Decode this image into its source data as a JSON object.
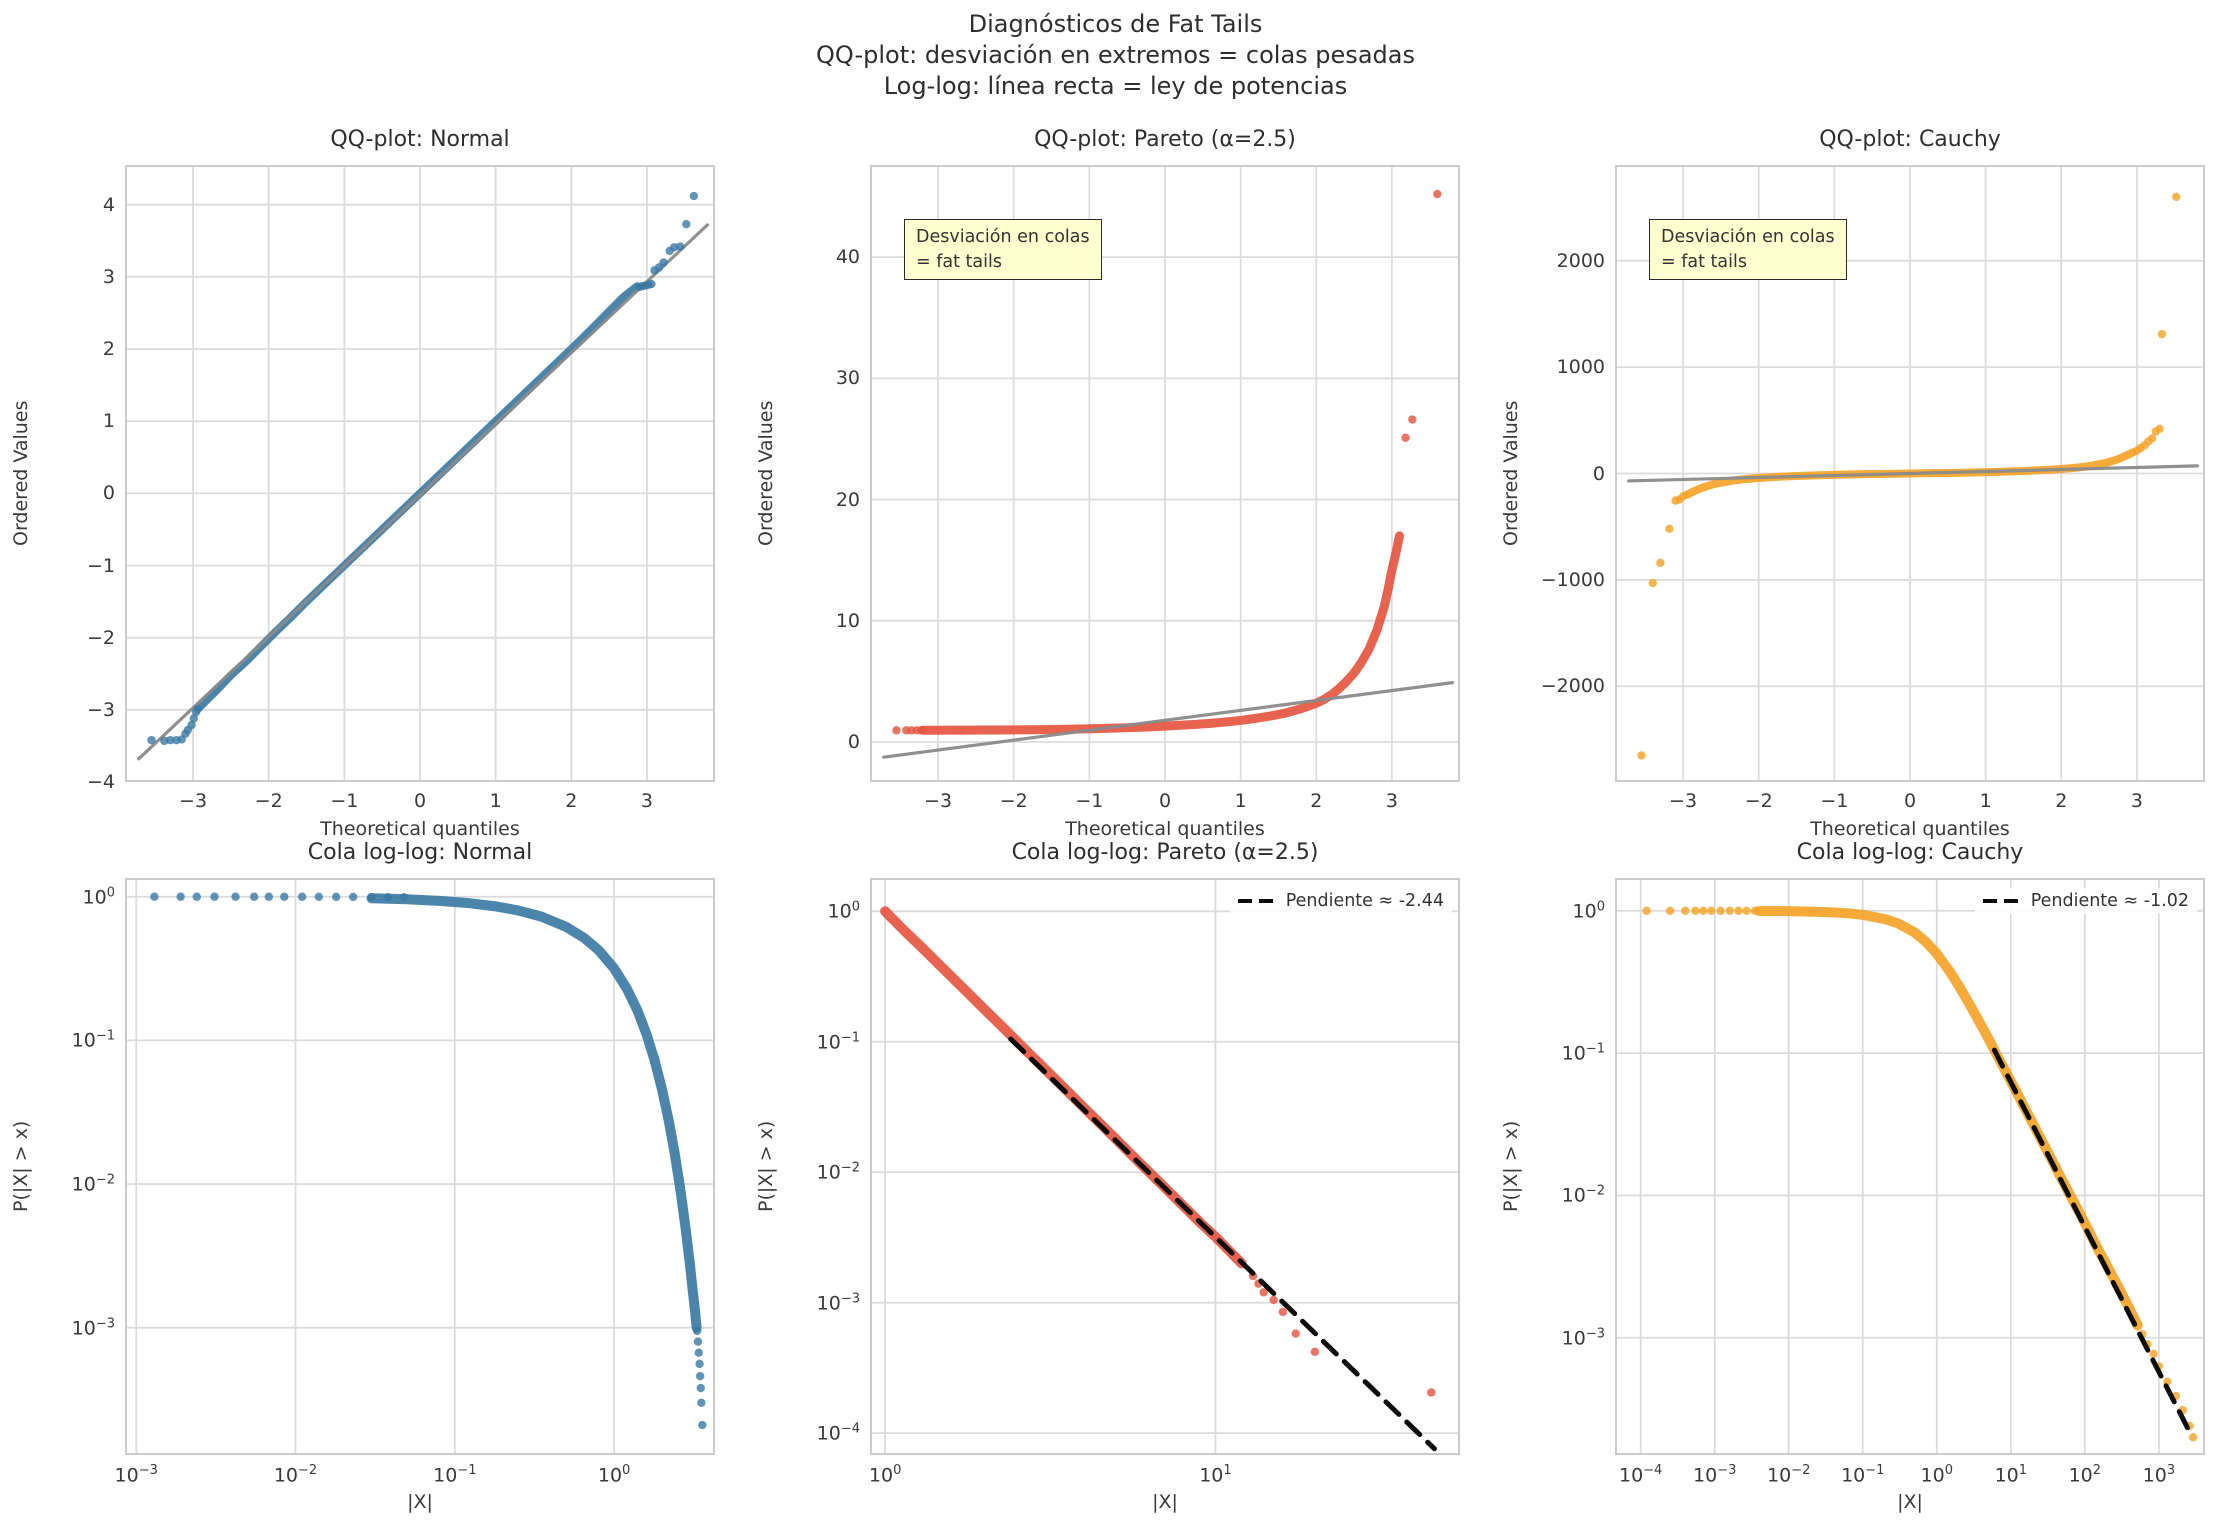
{
  "figure": {
    "title_lines": [
      "Diagnósticos de Fat Tails",
      "QQ-plot: desviación en extremos = colas pesadas",
      "Log-log: línea recta = ley de potencias"
    ],
    "background": "#ffffff",
    "grid_color": "#dbdbdb",
    "spine_color": "#cbcbcb",
    "text_color": "#3a3a3a",
    "ref_line_color": "#8a8a8a",
    "fit_line_color": "#0d0d0d"
  },
  "chart_data": [
    {
      "id": "qq-normal",
      "type": "scatter",
      "title": "QQ-plot: Normal",
      "xlabel": "Theoretical quantiles",
      "ylabel": "Ordered Values",
      "xscale": "linear",
      "yscale": "linear",
      "xlim": [
        -3.9,
        3.9
      ],
      "ylim": [
        -4.0,
        4.55
      ],
      "xticks": [
        -3,
        -2,
        -1,
        0,
        1,
        2,
        3
      ],
      "yticks": [
        -4,
        -3,
        -2,
        -1,
        0,
        1,
        2,
        3,
        4
      ],
      "color": "#3878A3",
      "band_width": 8,
      "band": [
        [
          -2.92,
          -2.97
        ],
        [
          -2.7,
          -2.74
        ],
        [
          -2.5,
          -2.52
        ],
        [
          -2.3,
          -2.33
        ],
        [
          -2.1,
          -2.12
        ],
        [
          -1.9,
          -1.91
        ],
        [
          -1.7,
          -1.71
        ],
        [
          -1.5,
          -1.5
        ],
        [
          -1.3,
          -1.3
        ],
        [
          -1.1,
          -1.1
        ],
        [
          -0.9,
          -0.9
        ],
        [
          -0.7,
          -0.7
        ],
        [
          -0.5,
          -0.5
        ],
        [
          -0.3,
          -0.3
        ],
        [
          -0.1,
          -0.1
        ],
        [
          0.1,
          0.1
        ],
        [
          0.3,
          0.3
        ],
        [
          0.5,
          0.5
        ],
        [
          0.7,
          0.7
        ],
        [
          0.9,
          0.9
        ],
        [
          1.1,
          1.1
        ],
        [
          1.3,
          1.3
        ],
        [
          1.5,
          1.5
        ],
        [
          1.7,
          1.7
        ],
        [
          1.9,
          1.9
        ],
        [
          2.1,
          2.1
        ],
        [
          2.3,
          2.31
        ],
        [
          2.5,
          2.52
        ],
        [
          2.7,
          2.73
        ],
        [
          2.87,
          2.87
        ]
      ],
      "dots": [
        [
          -3.55,
          -3.42
        ],
        [
          -3.38,
          -3.43
        ],
        [
          -3.3,
          -3.42
        ],
        [
          -3.22,
          -3.42
        ],
        [
          -3.15,
          -3.41
        ],
        [
          -3.1,
          -3.33
        ],
        [
          -3.07,
          -3.28
        ],
        [
          -3.02,
          -3.21
        ],
        [
          -2.99,
          -3.12
        ],
        [
          -2.96,
          -3.03
        ],
        [
          -2.94,
          -2.99
        ],
        [
          2.9,
          2.86
        ],
        [
          2.94,
          2.87
        ],
        [
          2.98,
          2.88
        ],
        [
          3.02,
          2.89
        ],
        [
          3.06,
          2.9
        ],
        [
          3.1,
          3.09
        ],
        [
          3.16,
          3.13
        ],
        [
          3.22,
          3.2
        ],
        [
          3.3,
          3.36
        ],
        [
          3.36,
          3.41
        ],
        [
          3.44,
          3.42
        ],
        [
          3.52,
          3.73
        ],
        [
          3.62,
          4.12
        ]
      ],
      "ref_line": {
        "p1": [
          -3.72,
          -3.68
        ],
        "p2": [
          3.8,
          3.72
        ]
      }
    },
    {
      "id": "qq-pareto",
      "type": "scatter",
      "title": "QQ-plot: Pareto (α=2.5)",
      "xlabel": "Theoretical quantiles",
      "ylabel": "Ordered Values",
      "xscale": "linear",
      "yscale": "linear",
      "xlim": [
        -3.9,
        3.9
      ],
      "ylim": [
        -3.3,
        47.6
      ],
      "xticks": [
        -3,
        -2,
        -1,
        0,
        1,
        2,
        3
      ],
      "yticks": [
        0,
        10,
        20,
        30,
        40
      ],
      "color": "#E4513C",
      "band_width": 9,
      "band": [
        [
          -3.2,
          0.97
        ],
        [
          -3.0,
          0.97
        ],
        [
          -2.8,
          0.98
        ],
        [
          -2.6,
          0.98
        ],
        [
          -2.4,
          0.99
        ],
        [
          -2.2,
          0.99
        ],
        [
          -2.0,
          1.0
        ],
        [
          -1.8,
          1.01
        ],
        [
          -1.6,
          1.02
        ],
        [
          -1.4,
          1.04
        ],
        [
          -1.2,
          1.06
        ],
        [
          -1.0,
          1.09
        ],
        [
          -0.8,
          1.12
        ],
        [
          -0.6,
          1.16
        ],
        [
          -0.4,
          1.2
        ],
        [
          -0.2,
          1.25
        ],
        [
          0,
          1.31
        ],
        [
          0.2,
          1.38
        ],
        [
          0.4,
          1.45
        ],
        [
          0.6,
          1.54
        ],
        [
          0.8,
          1.65
        ],
        [
          1.0,
          1.78
        ],
        [
          1.2,
          1.95
        ],
        [
          1.4,
          2.15
        ],
        [
          1.6,
          2.4
        ],
        [
          1.8,
          2.75
        ],
        [
          2.0,
          3.2
        ],
        [
          2.1,
          3.5
        ],
        [
          2.2,
          3.9
        ],
        [
          2.3,
          4.4
        ],
        [
          2.4,
          5.0
        ],
        [
          2.5,
          5.7
        ],
        [
          2.6,
          6.6
        ],
        [
          2.7,
          7.7
        ],
        [
          2.8,
          9.2
        ],
        [
          2.85,
          10.2
        ],
        [
          2.9,
          11.2
        ],
        [
          2.95,
          12.6
        ],
        [
          3.0,
          14.2
        ],
        [
          3.05,
          15.5
        ],
        [
          3.1,
          17.0
        ]
      ],
      "dots": [
        [
          -3.55,
          0.96
        ],
        [
          -3.42,
          0.96
        ],
        [
          -3.35,
          0.96
        ],
        [
          -3.28,
          0.96
        ],
        [
          -3.22,
          0.97
        ],
        [
          3.18,
          25.1
        ],
        [
          3.27,
          26.6
        ],
        [
          3.6,
          45.2
        ]
      ],
      "ref_line": {
        "p1": [
          -3.72,
          -1.25
        ],
        "p2": [
          3.8,
          4.9
        ]
      },
      "annotation": {
        "lines": [
          "Desviación en colas",
          "= fat tails"
        ],
        "bg": "#ffffd0",
        "position": "upper left"
      }
    },
    {
      "id": "qq-cauchy",
      "type": "scatter",
      "title": "QQ-plot: Cauchy",
      "xlabel": "Theoretical quantiles",
      "ylabel": "Ordered Values",
      "xscale": "linear",
      "yscale": "linear",
      "xlim": [
        -3.9,
        3.9
      ],
      "ylim": [
        -2900,
        2900
      ],
      "xticks": [
        -3,
        -2,
        -1,
        0,
        1,
        2,
        3
      ],
      "yticks": [
        -2000,
        -1000,
        0,
        1000,
        2000
      ],
      "color": "#F4A123",
      "band_width": 8,
      "band": [
        [
          -2.95,
          -200
        ],
        [
          -2.85,
          -165
        ],
        [
          -2.75,
          -135
        ],
        [
          -2.6,
          -100
        ],
        [
          -2.45,
          -80
        ],
        [
          -2.3,
          -62
        ],
        [
          -2.1,
          -48
        ],
        [
          -1.9,
          -38
        ],
        [
          -1.7,
          -30
        ],
        [
          -1.5,
          -24
        ],
        [
          -1.2,
          -17
        ],
        [
          -0.9,
          -11
        ],
        [
          -0.6,
          -6
        ],
        [
          -0.3,
          -3
        ],
        [
          0,
          0
        ],
        [
          0.3,
          3
        ],
        [
          0.6,
          6
        ],
        [
          0.9,
          11
        ],
        [
          1.2,
          17
        ],
        [
          1.5,
          24
        ],
        [
          1.7,
          30
        ],
        [
          1.9,
          38
        ],
        [
          2.1,
          48
        ],
        [
          2.3,
          62
        ],
        [
          2.45,
          80
        ],
        [
          2.6,
          100
        ],
        [
          2.75,
          135
        ],
        [
          2.85,
          165
        ],
        [
          2.95,
          200
        ]
      ],
      "dots": [
        [
          -3.55,
          -2650
        ],
        [
          -3.4,
          -1030
        ],
        [
          -3.3,
          -840
        ],
        [
          -3.18,
          -520
        ],
        [
          -3.1,
          -255
        ],
        [
          -3.05,
          -245
        ],
        [
          -3.0,
          -215
        ],
        [
          3.0,
          215
        ],
        [
          3.05,
          240
        ],
        [
          3.1,
          265
        ],
        [
          3.15,
          300
        ],
        [
          3.2,
          330
        ],
        [
          3.25,
          395
        ],
        [
          3.3,
          420
        ],
        [
          3.33,
          1310
        ],
        [
          3.52,
          2600
        ]
      ],
      "ref_line": {
        "p1": [
          -3.72,
          -70
        ],
        "p2": [
          3.8,
          72
        ]
      },
      "annotation": {
        "lines": [
          "Desviación en colas",
          "= fat tails"
        ],
        "bg": "#ffffd0",
        "position": "upper left"
      }
    },
    {
      "id": "loglog-normal",
      "type": "scatter",
      "title": "Cola log-log: Normal",
      "xlabel": "|X|",
      "ylabel": "P(|X| > x)",
      "xscale": "log",
      "yscale": "log",
      "xlim": [
        0.00085,
        4.3
      ],
      "ylim": [
        0.00013,
        1.35
      ],
      "xtick_exps": [
        -3,
        -2,
        -1,
        0
      ],
      "ytick_exps": [
        0,
        -1,
        -2,
        -3
      ],
      "color": "#3878A3",
      "band_width": 10,
      "band": [
        [
          0.03,
          0.976
        ],
        [
          0.05,
          0.96
        ],
        [
          0.08,
          0.936
        ],
        [
          0.12,
          0.905
        ],
        [
          0.18,
          0.857
        ],
        [
          0.25,
          0.803
        ],
        [
          0.35,
          0.727
        ],
        [
          0.5,
          0.617
        ],
        [
          0.65,
          0.516
        ],
        [
          0.8,
          0.424
        ],
        [
          1.0,
          0.317
        ],
        [
          1.2,
          0.23
        ],
        [
          1.4,
          0.162
        ],
        [
          1.6,
          0.11
        ],
        [
          1.8,
          0.072
        ],
        [
          2.0,
          0.0455
        ],
        [
          2.2,
          0.0278
        ],
        [
          2.4,
          0.0164
        ],
        [
          2.6,
          0.0093
        ],
        [
          2.8,
          0.0051
        ],
        [
          3.0,
          0.0027
        ],
        [
          3.1,
          0.0019
        ],
        [
          3.2,
          0.0014
        ],
        [
          3.3,
          0.001
        ]
      ],
      "dots": [
        [
          0.0013,
          1
        ],
        [
          0.0019,
          1
        ],
        [
          0.0024,
          1
        ],
        [
          0.0031,
          1
        ],
        [
          0.0042,
          1
        ],
        [
          0.0055,
          1
        ],
        [
          0.0068,
          1
        ],
        [
          0.0085,
          1
        ],
        [
          0.011,
          1
        ],
        [
          0.014,
          0.999
        ],
        [
          0.018,
          0.998
        ],
        [
          0.023,
          0.997
        ],
        [
          0.03,
          0.995
        ],
        [
          0.038,
          0.993
        ],
        [
          0.048,
          0.99
        ],
        [
          3.32,
          0.00095
        ],
        [
          3.36,
          0.0008
        ],
        [
          3.4,
          0.00067
        ],
        [
          3.44,
          0.00056
        ],
        [
          3.47,
          0.00046
        ],
        [
          3.5,
          0.00038
        ],
        [
          3.53,
          0.0003
        ],
        [
          3.58,
          0.00021
        ]
      ]
    },
    {
      "id": "loglog-pareto",
      "type": "scatter",
      "title": "Cola log-log: Pareto (α=2.5)",
      "xlabel": "|X|",
      "ylabel": "P(|X| > x)",
      "xscale": "log",
      "yscale": "log",
      "xlim": [
        0.9,
        55
      ],
      "ylim": [
        6.8e-05,
        1.8
      ],
      "xtick_exps": [
        0,
        1
      ],
      "ytick_exps": [
        0,
        -1,
        -2,
        -3,
        -4
      ],
      "color": "#E4513C",
      "band_width": 10,
      "band": [
        [
          1.0,
          1.0
        ],
        [
          1.15,
          0.7
        ],
        [
          1.3,
          0.52
        ],
        [
          1.5,
          0.363
        ],
        [
          1.7,
          0.266
        ],
        [
          2.0,
          0.177
        ],
        [
          2.3,
          0.125
        ],
        [
          2.6,
          0.0917
        ],
        [
          3.0,
          0.0642
        ],
        [
          3.5,
          0.0437
        ],
        [
          4.0,
          0.0312
        ],
        [
          4.5,
          0.0233
        ],
        [
          5.0,
          0.0179
        ],
        [
          6.0,
          0.0113
        ],
        [
          7.0,
          0.0077
        ],
        [
          8.0,
          0.0055
        ],
        [
          9.0,
          0.0041
        ],
        [
          10,
          0.0032
        ],
        [
          11,
          0.0025
        ],
        [
          12,
          0.002
        ]
      ],
      "dots": [
        [
          13,
          0.0016
        ],
        [
          13.5,
          0.0014
        ],
        [
          14,
          0.0012
        ],
        [
          15,
          0.00105
        ],
        [
          16,
          0.00085
        ],
        [
          17.5,
          0.00058
        ],
        [
          20,
          0.00042
        ],
        [
          45,
          0.000205
        ]
      ],
      "fit_line": {
        "p1": [
          2.4,
          0.105
        ],
        "p2": [
          46,
          7.6e-05
        ],
        "slope": -2.44
      },
      "legend": {
        "label": "Pendiente ≈ -2.44",
        "position": "upper right"
      }
    },
    {
      "id": "loglog-cauchy",
      "type": "scatter",
      "title": "Cola log-log: Cauchy",
      "xlabel": "|X|",
      "ylabel": "P(|X| > x)",
      "xscale": "log",
      "yscale": "log",
      "xlim": [
        4.5e-05,
        4200
      ],
      "ylim": [
        0.00015,
        1.7
      ],
      "xtick_exps": [
        -4,
        -3,
        -2,
        -1,
        0,
        1,
        2,
        3
      ],
      "ytick_exps": [
        0,
        -1,
        -2,
        -3
      ],
      "color": "#F4A123",
      "band_width": 10,
      "band": [
        [
          0.004,
          0.997
        ],
        [
          0.01,
          0.994
        ],
        [
          0.03,
          0.981
        ],
        [
          0.06,
          0.962
        ],
        [
          0.1,
          0.937
        ],
        [
          0.2,
          0.874
        ],
        [
          0.3,
          0.815
        ],
        [
          0.5,
          0.705
        ],
        [
          0.7,
          0.61
        ],
        [
          1.0,
          0.5
        ],
        [
          1.5,
          0.374
        ],
        [
          2,
          0.295
        ],
        [
          3,
          0.205
        ],
        [
          4,
          0.156
        ],
        [
          5,
          0.126
        ],
        [
          7,
          0.09
        ],
        [
          10,
          0.0635
        ],
        [
          14,
          0.0454
        ],
        [
          20,
          0.0318
        ],
        [
          30,
          0.0212
        ],
        [
          50,
          0.0127
        ],
        [
          70,
          0.0091
        ],
        [
          100,
          0.0064
        ],
        [
          140,
          0.0045
        ],
        [
          200,
          0.0032
        ],
        [
          280,
          0.0023
        ],
        [
          400,
          0.0016
        ],
        [
          520,
          0.00122
        ]
      ],
      "dots": [
        [
          0.00012,
          1
        ],
        [
          0.00025,
          1
        ],
        [
          0.0004,
          1
        ],
        [
          0.00055,
          1
        ],
        [
          0.0007,
          1
        ],
        [
          0.0009,
          1
        ],
        [
          0.0012,
          1
        ],
        [
          0.0016,
          1
        ],
        [
          0.0021,
          1
        ],
        [
          0.0027,
          1
        ],
        [
          0.0035,
          1
        ],
        [
          600,
          0.00106
        ],
        [
          700,
          0.0009
        ],
        [
          850,
          0.00077
        ],
        [
          1000,
          0.00063
        ],
        [
          1300,
          0.00049
        ],
        [
          1700,
          0.00039
        ],
        [
          2100,
          0.00031
        ],
        [
          2600,
          0.00024
        ],
        [
          2900,
          0.0002
        ]
      ],
      "fit_line": {
        "p1": [
          6,
          0.105
        ],
        "p2": [
          2700,
          0.00021
        ],
        "slope": -1.02
      },
      "legend": {
        "label": "Pendiente ≈ -1.02",
        "position": "upper right"
      }
    }
  ]
}
